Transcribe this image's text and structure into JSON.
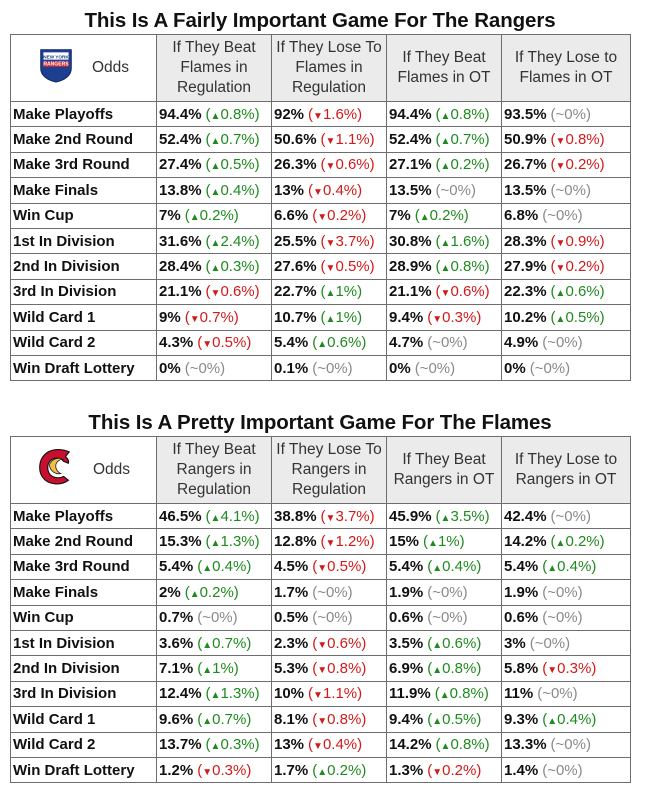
{
  "chart_data": [
    {
      "type": "table",
      "title": "This Is A Fairly Important Game For The Rangers",
      "team": "Rangers",
      "logo": "new-york-rangers-logo",
      "logo_text": "NEW YORK RANGERS",
      "corner_label": "Odds",
      "columns": [
        "If They Beat Flames in Regulation",
        "If They Lose To Flames in Regulation",
        "If They Beat Flames in OT",
        "If They Lose to Flames in OT"
      ],
      "rows": [
        {
          "label": "Make Playoffs",
          "cells": [
            {
              "pct": "94.4%",
              "delta": "0.8%",
              "dir": "up"
            },
            {
              "pct": "92%",
              "delta": "1.6%",
              "dir": "down"
            },
            {
              "pct": "94.4%",
              "delta": "0.8%",
              "dir": "up"
            },
            {
              "pct": "93.5%",
              "delta": "~0%",
              "dir": "flat"
            }
          ]
        },
        {
          "label": "Make 2nd Round",
          "cells": [
            {
              "pct": "52.4%",
              "delta": "0.7%",
              "dir": "up"
            },
            {
              "pct": "50.6%",
              "delta": "1.1%",
              "dir": "down"
            },
            {
              "pct": "52.4%",
              "delta": "0.7%",
              "dir": "up"
            },
            {
              "pct": "50.9%",
              "delta": "0.8%",
              "dir": "down"
            }
          ]
        },
        {
          "label": "Make 3rd Round",
          "cells": [
            {
              "pct": "27.4%",
              "delta": "0.5%",
              "dir": "up"
            },
            {
              "pct": "26.3%",
              "delta": "0.6%",
              "dir": "down"
            },
            {
              "pct": "27.1%",
              "delta": "0.2%",
              "dir": "up"
            },
            {
              "pct": "26.7%",
              "delta": "0.2%",
              "dir": "down"
            }
          ]
        },
        {
          "label": "Make Finals",
          "cells": [
            {
              "pct": "13.8%",
              "delta": "0.4%",
              "dir": "up"
            },
            {
              "pct": "13%",
              "delta": "0.4%",
              "dir": "down"
            },
            {
              "pct": "13.5%",
              "delta": "~0%",
              "dir": "flat"
            },
            {
              "pct": "13.5%",
              "delta": "~0%",
              "dir": "flat"
            }
          ]
        },
        {
          "label": "Win Cup",
          "cells": [
            {
              "pct": "7%",
              "delta": "0.2%",
              "dir": "up"
            },
            {
              "pct": "6.6%",
              "delta": "0.2%",
              "dir": "down"
            },
            {
              "pct": "7%",
              "delta": "0.2%",
              "dir": "up"
            },
            {
              "pct": "6.8%",
              "delta": "~0%",
              "dir": "flat"
            }
          ]
        },
        {
          "label": "1st In Division",
          "cells": [
            {
              "pct": "31.6%",
              "delta": "2.4%",
              "dir": "up"
            },
            {
              "pct": "25.5%",
              "delta": "3.7%",
              "dir": "down"
            },
            {
              "pct": "30.8%",
              "delta": "1.6%",
              "dir": "up"
            },
            {
              "pct": "28.3%",
              "delta": "0.9%",
              "dir": "down"
            }
          ]
        },
        {
          "label": "2nd In Division",
          "cells": [
            {
              "pct": "28.4%",
              "delta": "0.3%",
              "dir": "up"
            },
            {
              "pct": "27.6%",
              "delta": "0.5%",
              "dir": "down"
            },
            {
              "pct": "28.9%",
              "delta": "0.8%",
              "dir": "up"
            },
            {
              "pct": "27.9%",
              "delta": "0.2%",
              "dir": "down"
            }
          ]
        },
        {
          "label": "3rd In Division",
          "cells": [
            {
              "pct": "21.1%",
              "delta": "0.6%",
              "dir": "down"
            },
            {
              "pct": "22.7%",
              "delta": "1%",
              "dir": "up"
            },
            {
              "pct": "21.1%",
              "delta": "0.6%",
              "dir": "down"
            },
            {
              "pct": "22.3%",
              "delta": "0.6%",
              "dir": "up"
            }
          ]
        },
        {
          "label": "Wild Card 1",
          "cells": [
            {
              "pct": "9%",
              "delta": "0.7%",
              "dir": "down"
            },
            {
              "pct": "10.7%",
              "delta": "1%",
              "dir": "up"
            },
            {
              "pct": "9.4%",
              "delta": "0.3%",
              "dir": "down"
            },
            {
              "pct": "10.2%",
              "delta": "0.5%",
              "dir": "up"
            }
          ]
        },
        {
          "label": "Wild Card 2",
          "cells": [
            {
              "pct": "4.3%",
              "delta": "0.5%",
              "dir": "down"
            },
            {
              "pct": "5.4%",
              "delta": "0.6%",
              "dir": "up"
            },
            {
              "pct": "4.7%",
              "delta": "~0%",
              "dir": "flat"
            },
            {
              "pct": "4.9%",
              "delta": "~0%",
              "dir": "flat"
            }
          ]
        },
        {
          "label": "Win Draft Lottery",
          "cells": [
            {
              "pct": "0%",
              "delta": "~0%",
              "dir": "flat"
            },
            {
              "pct": "0.1%",
              "delta": "~0%",
              "dir": "flat"
            },
            {
              "pct": "0%",
              "delta": "~0%",
              "dir": "flat"
            },
            {
              "pct": "0%",
              "delta": "~0%",
              "dir": "flat"
            }
          ]
        }
      ]
    },
    {
      "type": "table",
      "title": "This Is A Pretty Important Game For The Flames",
      "team": "Flames",
      "logo": "calgary-flames-logo",
      "logo_text": "C",
      "corner_label": "Odds",
      "columns": [
        "If They Beat Rangers in Regulation",
        "If They Lose To Rangers in Regulation",
        "If They Beat Rangers in OT",
        "If They Lose to Rangers in OT"
      ],
      "rows": [
        {
          "label": "Make Playoffs",
          "cells": [
            {
              "pct": "46.5%",
              "delta": "4.1%",
              "dir": "up"
            },
            {
              "pct": "38.8%",
              "delta": "3.7%",
              "dir": "down"
            },
            {
              "pct": "45.9%",
              "delta": "3.5%",
              "dir": "up"
            },
            {
              "pct": "42.4%",
              "delta": "~0%",
              "dir": "flat"
            }
          ]
        },
        {
          "label": "Make 2nd Round",
          "cells": [
            {
              "pct": "15.3%",
              "delta": "1.3%",
              "dir": "up"
            },
            {
              "pct": "12.8%",
              "delta": "1.2%",
              "dir": "down"
            },
            {
              "pct": "15%",
              "delta": "1%",
              "dir": "up"
            },
            {
              "pct": "14.2%",
              "delta": "0.2%",
              "dir": "up"
            }
          ]
        },
        {
          "label": "Make 3rd Round",
          "cells": [
            {
              "pct": "5.4%",
              "delta": "0.4%",
              "dir": "up"
            },
            {
              "pct": "4.5%",
              "delta": "0.5%",
              "dir": "down"
            },
            {
              "pct": "5.4%",
              "delta": "0.4%",
              "dir": "up"
            },
            {
              "pct": "5.4%",
              "delta": "0.4%",
              "dir": "up"
            }
          ]
        },
        {
          "label": "Make Finals",
          "cells": [
            {
              "pct": "2%",
              "delta": "0.2%",
              "dir": "up"
            },
            {
              "pct": "1.7%",
              "delta": "~0%",
              "dir": "flat"
            },
            {
              "pct": "1.9%",
              "delta": "~0%",
              "dir": "flat"
            },
            {
              "pct": "1.9%",
              "delta": "~0%",
              "dir": "flat"
            }
          ]
        },
        {
          "label": "Win Cup",
          "cells": [
            {
              "pct": "0.7%",
              "delta": "~0%",
              "dir": "flat"
            },
            {
              "pct": "0.5%",
              "delta": "~0%",
              "dir": "flat"
            },
            {
              "pct": "0.6%",
              "delta": "~0%",
              "dir": "flat"
            },
            {
              "pct": "0.6%",
              "delta": "~0%",
              "dir": "flat"
            }
          ]
        },
        {
          "label": "1st In Division",
          "cells": [
            {
              "pct": "3.6%",
              "delta": "0.7%",
              "dir": "up"
            },
            {
              "pct": "2.3%",
              "delta": "0.6%",
              "dir": "down"
            },
            {
              "pct": "3.5%",
              "delta": "0.6%",
              "dir": "up"
            },
            {
              "pct": "3%",
              "delta": "~0%",
              "dir": "flat"
            }
          ]
        },
        {
          "label": "2nd In Division",
          "cells": [
            {
              "pct": "7.1%",
              "delta": "1%",
              "dir": "up"
            },
            {
              "pct": "5.3%",
              "delta": "0.8%",
              "dir": "down"
            },
            {
              "pct": "6.9%",
              "delta": "0.8%",
              "dir": "up"
            },
            {
              "pct": "5.8%",
              "delta": "0.3%",
              "dir": "down"
            }
          ]
        },
        {
          "label": "3rd In Division",
          "cells": [
            {
              "pct": "12.4%",
              "delta": "1.3%",
              "dir": "up"
            },
            {
              "pct": "10%",
              "delta": "1.1%",
              "dir": "down"
            },
            {
              "pct": "11.9%",
              "delta": "0.8%",
              "dir": "up"
            },
            {
              "pct": "11%",
              "delta": "~0%",
              "dir": "flat"
            }
          ]
        },
        {
          "label": "Wild Card 1",
          "cells": [
            {
              "pct": "9.6%",
              "delta": "0.7%",
              "dir": "up"
            },
            {
              "pct": "8.1%",
              "delta": "0.8%",
              "dir": "down"
            },
            {
              "pct": "9.4%",
              "delta": "0.5%",
              "dir": "up"
            },
            {
              "pct": "9.3%",
              "delta": "0.4%",
              "dir": "up"
            }
          ]
        },
        {
          "label": "Wild Card 2",
          "cells": [
            {
              "pct": "13.7%",
              "delta": "0.3%",
              "dir": "up"
            },
            {
              "pct": "13%",
              "delta": "0.4%",
              "dir": "down"
            },
            {
              "pct": "14.2%",
              "delta": "0.8%",
              "dir": "up"
            },
            {
              "pct": "13.3%",
              "delta": "~0%",
              "dir": "flat"
            }
          ]
        },
        {
          "label": "Win Draft Lottery",
          "cells": [
            {
              "pct": "1.2%",
              "delta": "0.3%",
              "dir": "down"
            },
            {
              "pct": "1.7%",
              "delta": "0.2%",
              "dir": "up"
            },
            {
              "pct": "1.3%",
              "delta": "0.2%",
              "dir": "down"
            },
            {
              "pct": "1.4%",
              "delta": "~0%",
              "dir": "flat"
            }
          ]
        }
      ]
    }
  ],
  "colors": {
    "up": "#1f8a1f",
    "down": "#d11a1a",
    "flat": "#8a8a8a",
    "header_bg": "#ebebeb",
    "border": "#6e6e6e"
  }
}
